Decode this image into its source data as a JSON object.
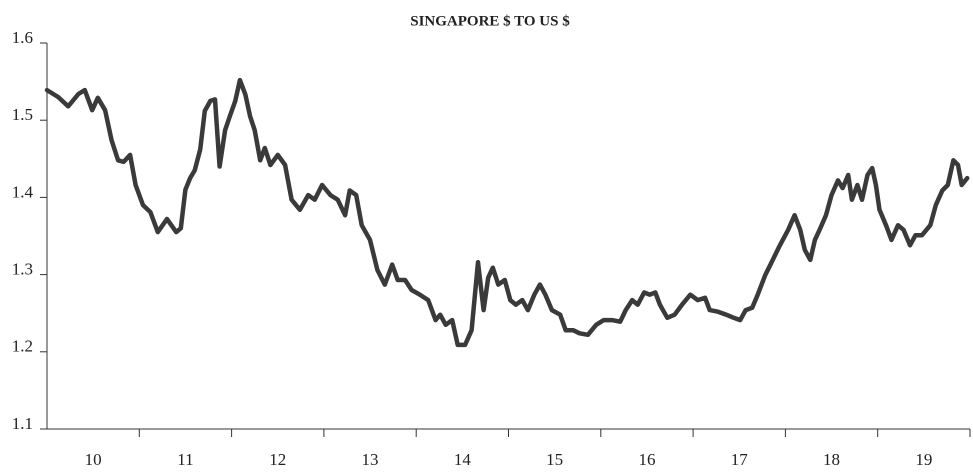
{
  "chart_data": {
    "type": "line",
    "title": "SINGAPORE $ TO US $",
    "categories": [
      "10",
      "11",
      "12",
      "13",
      "14",
      "15",
      "16",
      "17",
      "18",
      "19"
    ],
    "xlim": [
      10,
      20
    ],
    "ylim": [
      1.1,
      1.6
    ],
    "yticks": [
      1.1,
      1.2,
      1.3,
      1.4,
      1.5,
      1.6
    ],
    "series": [
      {
        "color": "#3a3a3a",
        "x": [
          10.0,
          10.12,
          10.23,
          10.34,
          10.41,
          10.49,
          10.55,
          10.63,
          10.7,
          10.77,
          10.83,
          10.9,
          10.96,
          11.04,
          11.12,
          11.2,
          11.3,
          11.4,
          11.45,
          11.5,
          11.55,
          11.6,
          11.66,
          11.71,
          11.77,
          11.82,
          11.87,
          11.93,
          11.98,
          12.04,
          12.09,
          12.15,
          12.2,
          12.25,
          12.31,
          12.36,
          12.42,
          12.5,
          12.58,
          12.65,
          12.74,
          12.83,
          12.9,
          12.98,
          13.07,
          13.15,
          13.23,
          13.28,
          13.35,
          13.41,
          13.5,
          13.58,
          13.66,
          13.74,
          13.8,
          13.88,
          13.95,
          14.04,
          14.13,
          14.21,
          14.26,
          14.32,
          14.39,
          14.45,
          14.53,
          14.6,
          14.67,
          14.73,
          14.78,
          14.83,
          14.89,
          14.96,
          15.02,
          15.08,
          15.15,
          15.21,
          15.28,
          15.34,
          15.4,
          15.47,
          15.56,
          15.62,
          15.7,
          15.77,
          15.86,
          15.95,
          16.03,
          16.12,
          16.21,
          16.27,
          16.34,
          16.4,
          16.47,
          16.53,
          16.59,
          16.64,
          16.72,
          16.8,
          16.88,
          16.97,
          17.05,
          17.13,
          17.18,
          17.27,
          17.36,
          17.44,
          17.51,
          17.57,
          17.64,
          17.7,
          17.78,
          17.85,
          17.94,
          18.03,
          18.1,
          18.16,
          18.21,
          18.27,
          18.32,
          18.37,
          18.44,
          18.5,
          18.57,
          18.62,
          18.68,
          18.72,
          18.78,
          18.83,
          18.89,
          18.94,
          18.98,
          19.02,
          19.09,
          19.15,
          19.22,
          19.28,
          19.35,
          19.41,
          19.48,
          19.57,
          19.63,
          19.7,
          19.76,
          19.82,
          19.87,
          19.91,
          19.97
        ],
        "values": [
          1.539,
          1.53,
          1.518,
          1.534,
          1.539,
          1.513,
          1.529,
          1.513,
          1.474,
          1.448,
          1.446,
          1.455,
          1.416,
          1.39,
          1.381,
          1.355,
          1.372,
          1.355,
          1.36,
          1.41,
          1.425,
          1.435,
          1.462,
          1.512,
          1.525,
          1.527,
          1.44,
          1.487,
          1.505,
          1.525,
          1.552,
          1.533,
          1.505,
          1.487,
          1.448,
          1.464,
          1.442,
          1.455,
          1.442,
          1.397,
          1.384,
          1.403,
          1.397,
          1.416,
          1.403,
          1.397,
          1.377,
          1.409,
          1.403,
          1.364,
          1.345,
          1.306,
          1.287,
          1.313,
          1.293,
          1.293,
          1.28,
          1.274,
          1.267,
          1.241,
          1.248,
          1.235,
          1.241,
          1.209,
          1.209,
          1.228,
          1.316,
          1.254,
          1.296,
          1.309,
          1.287,
          1.293,
          1.267,
          1.261,
          1.267,
          1.254,
          1.274,
          1.287,
          1.274,
          1.254,
          1.248,
          1.228,
          1.228,
          1.224,
          1.222,
          1.235,
          1.241,
          1.241,
          1.239,
          1.254,
          1.267,
          1.261,
          1.277,
          1.274,
          1.277,
          1.261,
          1.244,
          1.248,
          1.261,
          1.274,
          1.267,
          1.27,
          1.254,
          1.252,
          1.248,
          1.244,
          1.241,
          1.254,
          1.257,
          1.274,
          1.299,
          1.316,
          1.338,
          1.358,
          1.377,
          1.358,
          1.332,
          1.319,
          1.345,
          1.358,
          1.377,
          1.403,
          1.422,
          1.412,
          1.429,
          1.397,
          1.416,
          1.397,
          1.429,
          1.438,
          1.416,
          1.384,
          1.364,
          1.345,
          1.364,
          1.358,
          1.338,
          1.351,
          1.351,
          1.364,
          1.39,
          1.409,
          1.416,
          1.448,
          1.442,
          1.416,
          1.425
        ]
      }
    ]
  }
}
